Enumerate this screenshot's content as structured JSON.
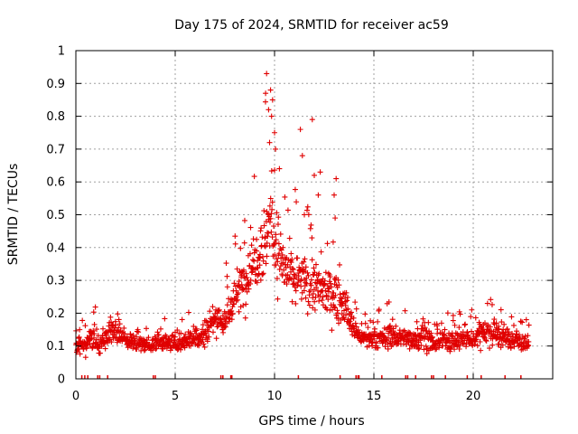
{
  "chart_data": {
    "type": "scatter",
    "title": "Day 175 of 2024, SRMTID for receiver ac59",
    "xlabel": "GPS time / hours",
    "ylabel": "SRMTID / TECUs",
    "xlim": [
      0,
      24
    ],
    "ylim": [
      0,
      1
    ],
    "xticks": [
      0,
      5,
      10,
      15,
      20
    ],
    "xtick_labels": [
      "0",
      "5",
      "10",
      "15",
      "20"
    ],
    "yticks": [
      0,
      0.1,
      0.2,
      0.3,
      0.4,
      0.5,
      0.6,
      0.7,
      0.8,
      0.9,
      1
    ],
    "ytick_labels": [
      "0",
      "0.1",
      "0.2",
      "0.3",
      "0.4",
      "0.5",
      "0.6",
      "0.7",
      "0.8",
      "0.9",
      "1"
    ],
    "grid": true,
    "marker": "+",
    "color": "#e00000",
    "series": [
      {
        "name": "SRMTID",
        "profile_hours": [
          0,
          0.5,
          0.8,
          1.2,
          1.8,
          2.5,
          3.5,
          4.0,
          5.0,
          6.0,
          6.5,
          7.0,
          7.5,
          8.0,
          8.5,
          9.0,
          9.5,
          9.8,
          10.0,
          10.5,
          11.0,
          11.5,
          12.0,
          12.5,
          13.0,
          13.5,
          14.0,
          14.5,
          15.0,
          16.0,
          17.0,
          17.5,
          18.0,
          18.5,
          19.0,
          20.0,
          20.5,
          21.0,
          22.0,
          22.8
        ],
        "profile_typical": [
          0.1,
          0.1,
          0.13,
          0.1,
          0.15,
          0.12,
          0.1,
          0.11,
          0.11,
          0.13,
          0.14,
          0.19,
          0.17,
          0.25,
          0.3,
          0.37,
          0.42,
          0.5,
          0.42,
          0.34,
          0.3,
          0.3,
          0.28,
          0.27,
          0.26,
          0.22,
          0.15,
          0.12,
          0.12,
          0.13,
          0.12,
          0.14,
          0.1,
          0.12,
          0.12,
          0.12,
          0.15,
          0.14,
          0.12,
          0.11
        ],
        "profile_spread": [
          0.04,
          0.05,
          0.08,
          0.05,
          0.06,
          0.04,
          0.04,
          0.04,
          0.05,
          0.06,
          0.08,
          0.09,
          0.08,
          0.12,
          0.14,
          0.17,
          0.22,
          0.25,
          0.2,
          0.17,
          0.15,
          0.14,
          0.13,
          0.13,
          0.13,
          0.1,
          0.06,
          0.05,
          0.05,
          0.07,
          0.05,
          0.08,
          0.04,
          0.05,
          0.06,
          0.05,
          0.08,
          0.07,
          0.06,
          0.04
        ],
        "point_count": 1500,
        "peaks": [
          {
            "x": 9.6,
            "y": 0.93
          },
          {
            "x": 9.8,
            "y": 0.88
          },
          {
            "x": 9.9,
            "y": 0.85
          },
          {
            "x": 9.55,
            "y": 0.87
          },
          {
            "x": 9.7,
            "y": 0.82
          },
          {
            "x": 9.85,
            "y": 0.8
          },
          {
            "x": 10.0,
            "y": 0.75
          },
          {
            "x": 9.75,
            "y": 0.72
          },
          {
            "x": 11.9,
            "y": 0.79
          },
          {
            "x": 11.3,
            "y": 0.76
          },
          {
            "x": 11.4,
            "y": 0.68
          },
          {
            "x": 12.3,
            "y": 0.63
          },
          {
            "x": 13.1,
            "y": 0.61
          },
          {
            "x": 12.0,
            "y": 0.62
          },
          {
            "x": 13.0,
            "y": 0.56
          },
          {
            "x": 12.2,
            "y": 0.56
          },
          {
            "x": 13.05,
            "y": 0.49
          },
          {
            "x": 11.5,
            "y": 0.5
          },
          {
            "x": 10.05,
            "y": 0.7
          }
        ]
      }
    ],
    "event_markers_hours": [
      0.3,
      0.45,
      0.6,
      1.1,
      1.2,
      1.6,
      3.9,
      4.0,
      7.3,
      7.4,
      7.8,
      7.85,
      11.2,
      13.3,
      14.1,
      14.2,
      14.25,
      15.4,
      16.6,
      16.7,
      17.1,
      17.9,
      18.0,
      18.6,
      19.7,
      20.4,
      21.6,
      22.4
    ]
  }
}
